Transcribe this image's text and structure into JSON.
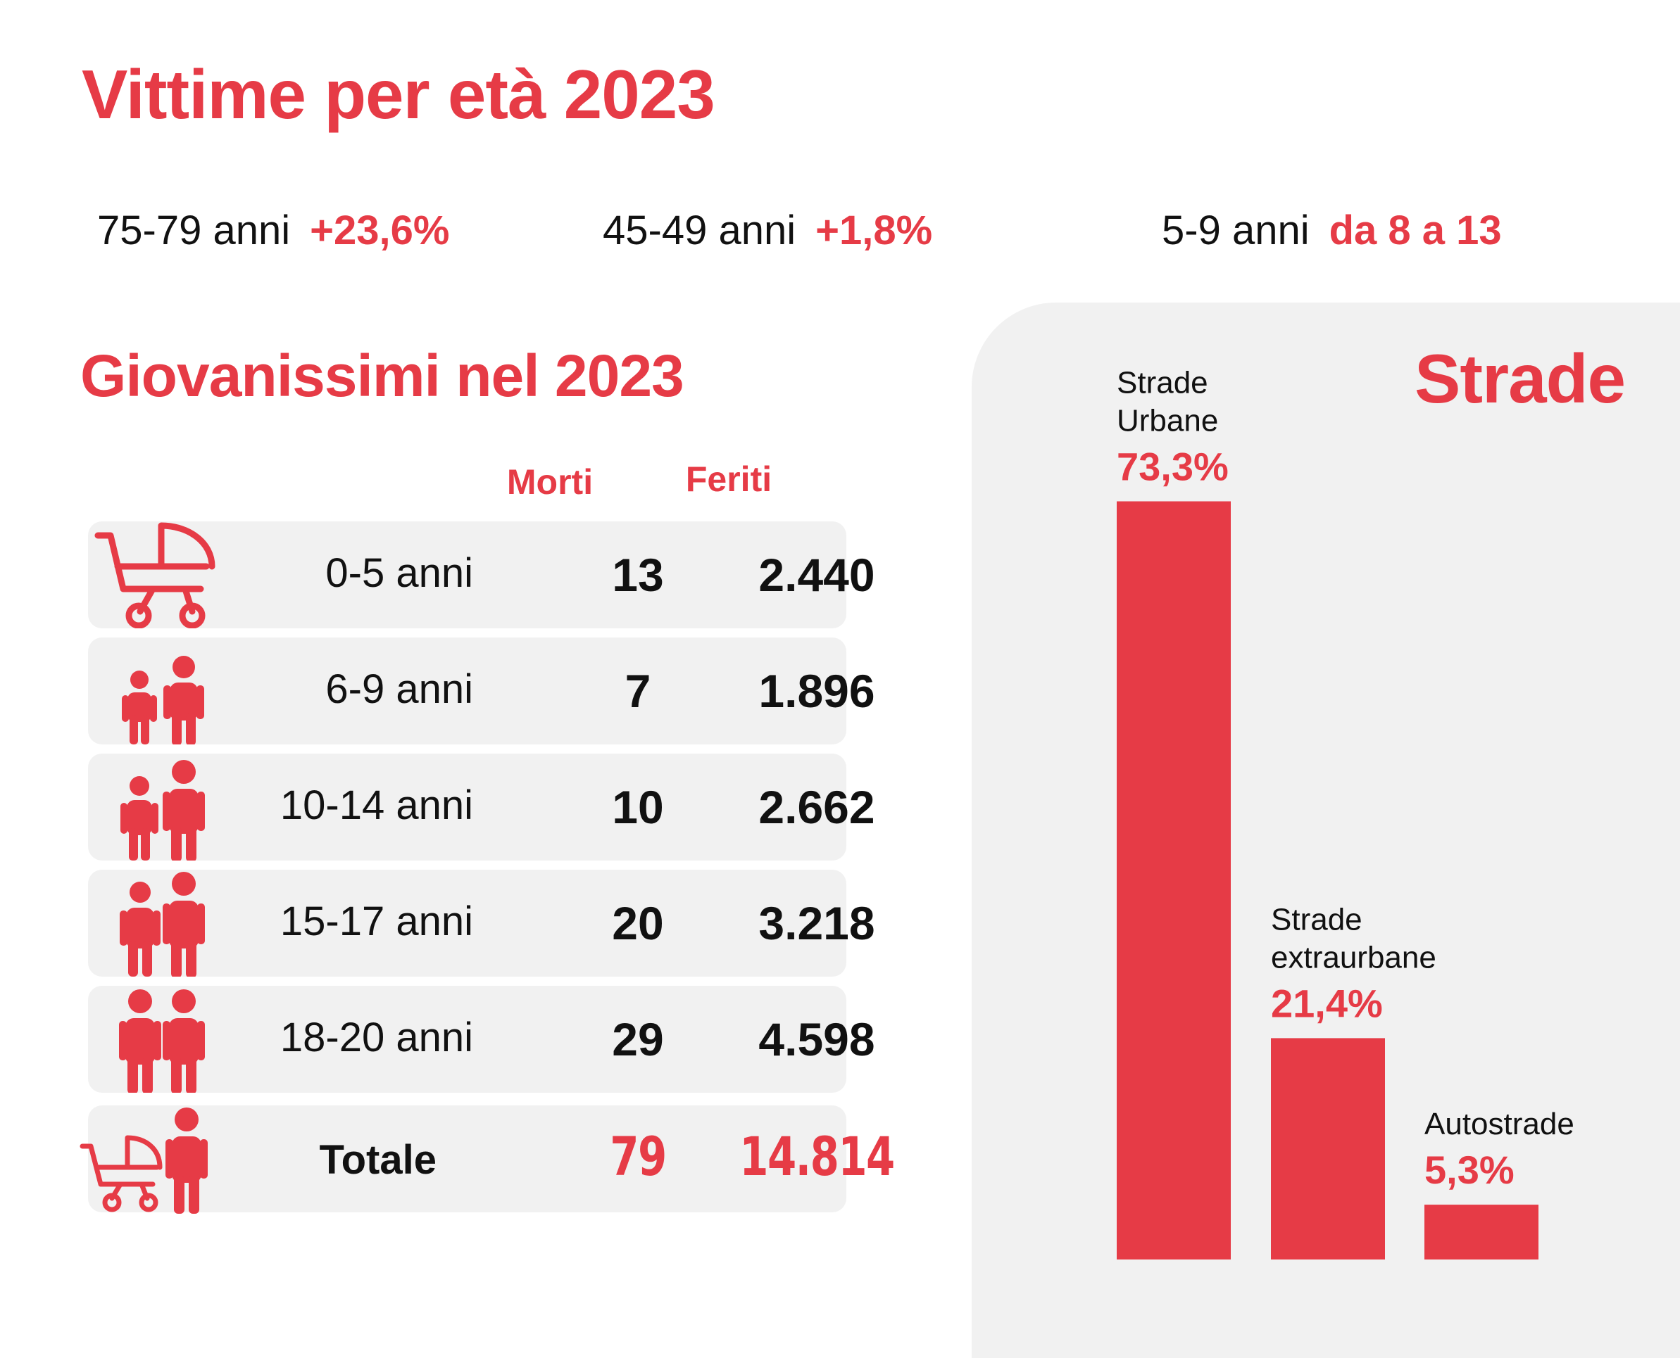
{
  "title": "Vittime per età 2023",
  "highlights": [
    {
      "label": "75-79 anni",
      "value": "+23,6%"
    },
    {
      "label": "45-49 anni",
      "value": "+1,8%"
    },
    {
      "label": "5-9 anni",
      "value": "da 8 a 13"
    }
  ],
  "young": {
    "title": "Giovanissimi nel 2023",
    "columns": {
      "morti": "Morti",
      "feriti": "Feriti"
    },
    "rows": [
      {
        "age": "0-5 anni",
        "icon": "baby-stroller-icon",
        "morti": "13",
        "feriti": "2.440"
      },
      {
        "age": "6-9 anni",
        "icon": "children-icon",
        "morti": "7",
        "feriti": "1.896"
      },
      {
        "age": "10-14 anni",
        "icon": "children-icon",
        "morti": "10",
        "feriti": "2.662"
      },
      {
        "age": "15-17 anni",
        "icon": "teenagers-icon",
        "morti": "20",
        "feriti": "3.218"
      },
      {
        "age": "18-20 anni",
        "icon": "young-adults-icon",
        "morti": "29",
        "feriti": "4.598"
      }
    ],
    "total": {
      "age": "Totale",
      "icon": "stroller-and-person-icon",
      "morti": "79",
      "feriti": "14.814"
    }
  },
  "colors": {
    "accent": "#e63b46",
    "panel": "#f1f1f1",
    "text": "#111111"
  },
  "chart_data": {
    "type": "bar",
    "title": "Strade",
    "categories": [
      "Strade\nUrbane",
      "Strade\nextraurbane",
      "Autostrade"
    ],
    "values": [
      73.3,
      21.4,
      5.3
    ],
    "value_labels": [
      "73,3%",
      "21,4%",
      "5,3%"
    ],
    "unit": "%",
    "ylim": [
      0,
      100
    ],
    "grid": false,
    "legend": "none",
    "bar_color": "#e63b46"
  }
}
